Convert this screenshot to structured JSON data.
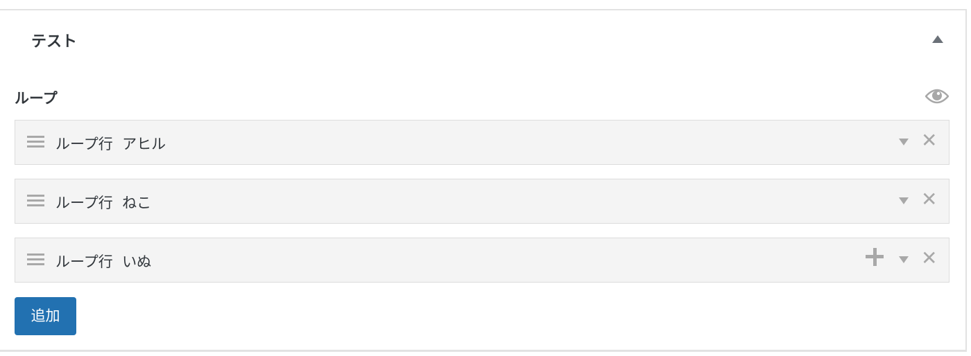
{
  "section": {
    "title": "テスト",
    "collapse_icon": "triangle-up-icon"
  },
  "field": {
    "label": "ループ",
    "visibility_icon": "eye-icon"
  },
  "rows": [
    {
      "label": "ループ行  アヒル"
    },
    {
      "label": "ループ行  ねこ"
    },
    {
      "label": "ループ行  いぬ"
    }
  ],
  "add_button": {
    "label": "追加"
  },
  "colors": {
    "accent": "#2271b1",
    "row_bg": "#f4f4f4",
    "icon": "#a8a8a8"
  }
}
